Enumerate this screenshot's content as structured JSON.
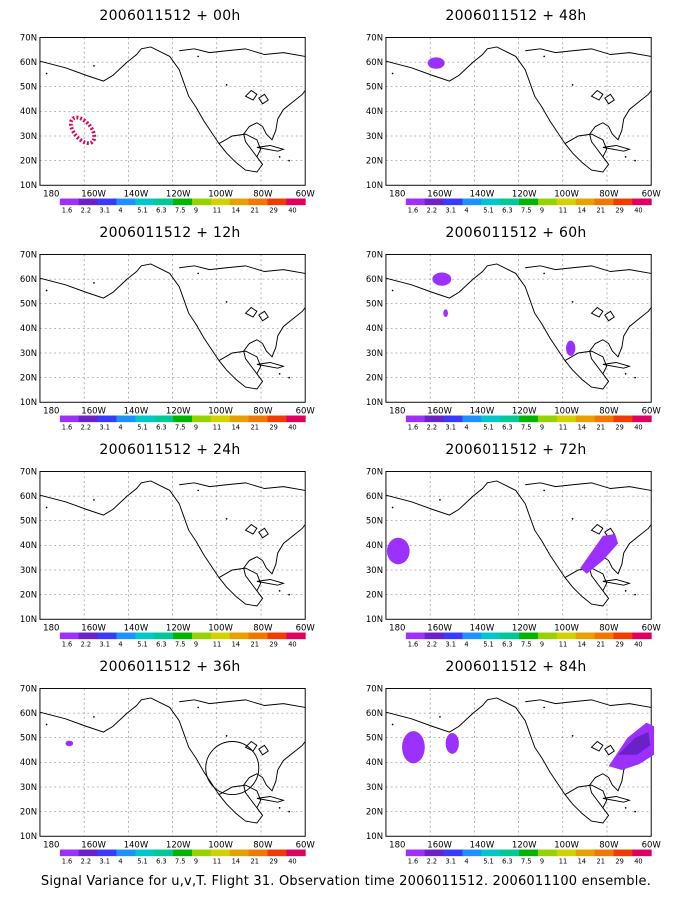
{
  "caption": "Signal Variance for u,v,T. Flight 31. Observation time 2006011512. 2006011100 ensemble.",
  "colorbar": {
    "labels": [
      "1.6",
      "2.2",
      "3.1",
      "4",
      "5.1",
      "6.3",
      "7.5",
      "9",
      "11",
      "14",
      "21",
      "29",
      "40"
    ],
    "colors": [
      "#9b30ff",
      "#6a22c8",
      "#3a3aff",
      "#1e90ff",
      "#00c8c8",
      "#00c896",
      "#00b400",
      "#96d200",
      "#d2d200",
      "#e6a000",
      "#f07800",
      "#f03c00",
      "#e00060"
    ]
  },
  "lat_labels": [
    "70N",
    "60N",
    "50N",
    "40N",
    "30N",
    "20N",
    "10N"
  ],
  "lon_labels": [
    "180",
    "160W",
    "140W",
    "120W",
    "100W",
    "80W",
    "60W"
  ],
  "panels": [
    {
      "title": "2006011512 + 00h"
    },
    {
      "title": "2006011512 + 48h"
    },
    {
      "title": "2006011512 + 12h"
    },
    {
      "title": "2006011512 + 60h"
    },
    {
      "title": "2006011512 + 24h"
    },
    {
      "title": "2006011512 + 72h"
    },
    {
      "title": "2006011512 + 36h"
    },
    {
      "title": "2006011512 + 84h"
    }
  ]
}
